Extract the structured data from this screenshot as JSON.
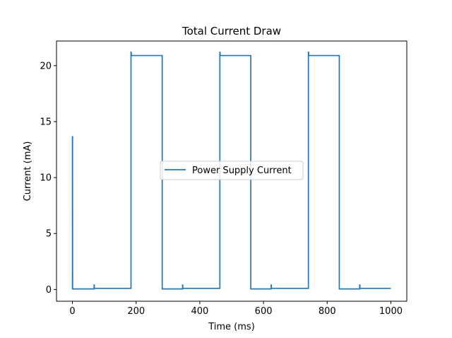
{
  "chart_data": {
    "type": "line",
    "title": "Total Current Draw",
    "xlabel": "Time (ms)",
    "ylabel": "Current (mA)",
    "xlim": [
      -50,
      1050
    ],
    "ylim": [
      -1.05,
      22.2
    ],
    "xticks": [
      0,
      200,
      400,
      600,
      800,
      1000
    ],
    "yticks": [
      0,
      5,
      10,
      15,
      20
    ],
    "xtick_labels": [
      "0",
      "200",
      "400",
      "600",
      "800",
      "1000"
    ],
    "ytick_labels": [
      "0",
      "5",
      "10",
      "15",
      "20"
    ],
    "legend": {
      "position": "center",
      "entries": [
        "Power Supply Current"
      ]
    },
    "grid": false,
    "series": [
      {
        "name": "Power Supply Current",
        "color": "#1f77b4",
        "x": [
          0,
          0,
          0,
          0.5,
          0.6,
          68,
          68,
          68.5,
          68.6,
          184,
          184,
          184.6,
          185,
          185.5,
          282,
          282,
          346,
          346,
          346.5,
          346.6,
          463,
          463,
          463.6,
          464,
          464.5,
          560,
          560,
          624,
          624,
          624.5,
          624.6,
          741,
          741,
          741.6,
          742,
          742.5,
          838,
          838,
          902,
          902,
          902.5,
          902.6,
          1000
        ],
        "y": [
          0.0,
          13.7,
          0.0,
          13.7,
          0.05,
          0.05,
          0.4,
          0.4,
          0.1,
          0.1,
          21.2,
          21.2,
          20.9,
          20.9,
          20.9,
          0.05,
          0.05,
          0.4,
          0.4,
          0.1,
          0.1,
          21.2,
          21.2,
          20.9,
          20.9,
          20.9,
          0.05,
          0.05,
          0.4,
          0.4,
          0.1,
          0.1,
          21.2,
          21.2,
          20.9,
          20.9,
          20.9,
          0.05,
          0.05,
          0.4,
          0.4,
          0.1,
          0.1
        ]
      }
    ]
  }
}
